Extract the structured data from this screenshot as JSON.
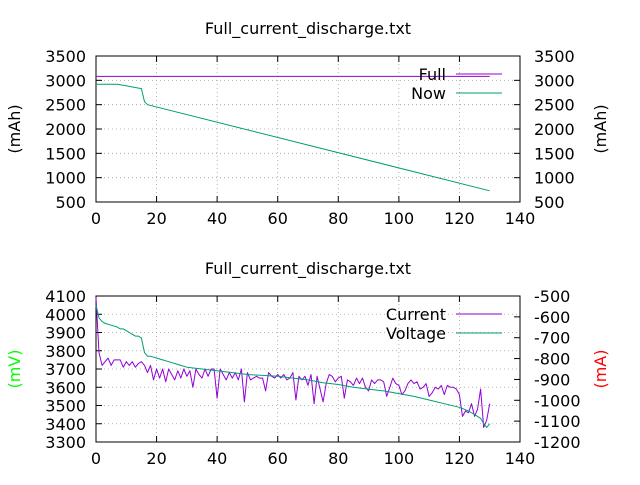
{
  "chart_data": [
    {
      "type": "line",
      "title": "Full_current_discharge.txt",
      "xlim": [
        0,
        140
      ],
      "x_ticks": [
        "0",
        "20",
        "40",
        "60",
        "80",
        "100",
        "120",
        "140"
      ],
      "ylim": [
        500,
        3500
      ],
      "y_ticks": [
        "500",
        "1000",
        "1500",
        "2000",
        "2500",
        "3000",
        "3500"
      ],
      "y2lim": [
        500,
        3500
      ],
      "y2_ticks": [
        "500",
        "1000",
        "1500",
        "2000",
        "2500",
        "3000",
        "3500"
      ],
      "ylabel": "(mAh)",
      "y2label": "(mAh)",
      "ylabel_color": "#000000",
      "y2label_color": "#000000",
      "grid": true,
      "legend_position": "top-right",
      "series": [
        {
          "name": "Full",
          "color": "#9400d3",
          "axis": "y",
          "x": [
            0,
            130
          ],
          "y": [
            3080,
            3080
          ]
        },
        {
          "name": "Now",
          "color": "#009e73",
          "axis": "y",
          "x": [
            0,
            7,
            15,
            16,
            17,
            130
          ],
          "y": [
            2920,
            2920,
            2830,
            2560,
            2500,
            730
          ]
        }
      ]
    },
    {
      "type": "line",
      "title": "Full_current_discharge.txt",
      "xlim": [
        0,
        140
      ],
      "x_ticks": [
        "0",
        "20",
        "40",
        "60",
        "80",
        "100",
        "120",
        "140"
      ],
      "ylim": [
        3300,
        4100
      ],
      "y_ticks": [
        "3300",
        "3400",
        "3500",
        "3600",
        "3700",
        "3800",
        "3900",
        "4000",
        "4100"
      ],
      "y2lim": [
        -1200,
        -500
      ],
      "y2_ticks": [
        "-1200",
        "-1100",
        "-1000",
        "-900",
        "-800",
        "-700",
        "-600",
        "-500"
      ],
      "ylabel": "(mV)",
      "y2label": "(mA)",
      "ylabel_color": "#00ff00",
      "y2label_color": "#ff0000",
      "grid": true,
      "legend_position": "top-right",
      "series": [
        {
          "name": "Current",
          "color": "#9400d3",
          "axis": "y",
          "x": [
            0,
            1,
            2,
            3,
            4,
            5,
            6,
            7,
            8,
            9,
            10,
            11,
            12,
            13,
            14,
            15,
            16,
            17,
            18,
            19,
            20,
            21,
            22,
            23,
            24,
            25,
            26,
            27,
            28,
            29,
            30,
            31,
            32,
            33,
            34,
            35,
            36,
            37,
            38,
            39,
            40,
            41,
            42,
            43,
            44,
            45,
            46,
            47,
            48,
            49,
            50,
            51,
            52,
            53,
            54,
            55,
            56,
            57,
            58,
            59,
            60,
            61,
            62,
            63,
            64,
            65,
            66,
            67,
            68,
            69,
            70,
            71,
            72,
            73,
            74,
            75,
            76,
            77,
            78,
            79,
            80,
            81,
            82,
            83,
            84,
            85,
            86,
            87,
            88,
            89,
            90,
            91,
            92,
            93,
            94,
            95,
            96,
            97,
            98,
            99,
            100,
            101,
            102,
            103,
            104,
            105,
            106,
            107,
            108,
            109,
            110,
            111,
            112,
            113,
            114,
            115,
            116,
            117,
            118,
            119,
            120,
            121,
            122,
            123,
            124,
            125,
            126,
            127,
            128,
            129,
            130
          ],
          "y": [
            4090,
            3790,
            3720,
            3740,
            3760,
            3720,
            3750,
            3750,
            3750,
            3710,
            3740,
            3720,
            3740,
            3710,
            3730,
            3740,
            3720,
            3680,
            3720,
            3640,
            3700,
            3650,
            3700,
            3630,
            3700,
            3670,
            3640,
            3690,
            3650,
            3700,
            3660,
            3690,
            3600,
            3700,
            3670,
            3650,
            3700,
            3660,
            3700,
            3700,
            3540,
            3700,
            3670,
            3640,
            3680,
            3650,
            3680,
            3640,
            3700,
            3520,
            3680,
            3640,
            3650,
            3660,
            3650,
            3650,
            3580,
            3680,
            3660,
            3650,
            3670,
            3650,
            3670,
            3640,
            3650,
            3680,
            3530,
            3660,
            3640,
            3660,
            3610,
            3670,
            3510,
            3660,
            3590,
            3520,
            3620,
            3670,
            3660,
            3630,
            3650,
            3660,
            3540,
            3640,
            3630,
            3610,
            3650,
            3620,
            3650,
            3600,
            3580,
            3640,
            3620,
            3640,
            3640,
            3630,
            3550,
            3600,
            3650,
            3620,
            3610,
            3560,
            3580,
            3620,
            3640,
            3620,
            3630,
            3590,
            3600,
            3620,
            3550,
            3570,
            3600,
            3590,
            3610,
            3560,
            3610,
            3600,
            3600,
            3590,
            3560,
            3440,
            3470,
            3460,
            3510,
            3440,
            3480,
            3590,
            3380,
            3420,
            3510
          ]
        },
        {
          "name": "Voltage",
          "color": "#009e73",
          "axis": "y",
          "x": [
            0,
            1,
            2,
            3,
            5,
            7,
            8,
            9,
            10,
            11,
            12,
            13,
            14,
            15,
            16,
            17,
            18,
            20,
            22,
            24,
            26,
            28,
            30,
            35,
            40,
            45,
            50,
            55,
            60,
            65,
            70,
            75,
            80,
            85,
            90,
            95,
            100,
            105,
            110,
            115,
            120,
            123,
            125,
            127,
            128,
            129,
            130
          ],
          "y": [
            4050,
            3980,
            3960,
            3950,
            3940,
            3930,
            3920,
            3920,
            3910,
            3900,
            3890,
            3880,
            3880,
            3870,
            3790,
            3770,
            3770,
            3760,
            3750,
            3740,
            3730,
            3720,
            3710,
            3700,
            3690,
            3680,
            3670,
            3665,
            3660,
            3650,
            3640,
            3625,
            3615,
            3600,
            3590,
            3580,
            3565,
            3550,
            3530,
            3510,
            3490,
            3470,
            3450,
            3430,
            3400,
            3380,
            3400
          ]
        }
      ]
    }
  ]
}
